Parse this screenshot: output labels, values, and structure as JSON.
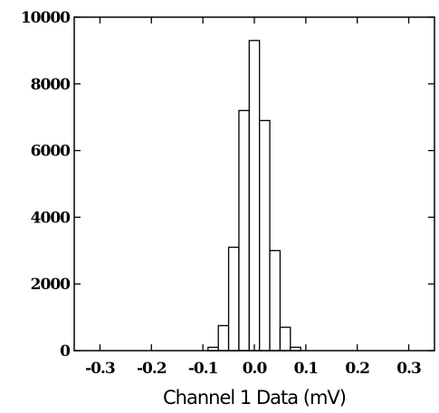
{
  "chart_data": {
    "type": "bar",
    "subtype": "histogram",
    "title": "",
    "xlabel": "Channel 1 Data (mV)",
    "ylabel": "",
    "xlim": [
      -0.35,
      0.35
    ],
    "ylim": [
      0,
      10000
    ],
    "x_ticks": [
      -0.3,
      -0.2,
      -0.1,
      0.0,
      0.1,
      0.2,
      0.3
    ],
    "x_tick_labels": [
      "-0.3",
      "-0.2",
      "-0.1",
      "0.0",
      "0.1",
      "0.2",
      "0.3"
    ],
    "y_ticks": [
      0,
      2000,
      4000,
      6000,
      8000,
      10000
    ],
    "y_tick_labels": [
      "0",
      "2000",
      "4000",
      "6000",
      "8000",
      "10000"
    ],
    "bin_width": 0.02,
    "bin_centers": [
      -0.1,
      -0.08,
      -0.06,
      -0.04,
      -0.02,
      0.0,
      0.02,
      0.04,
      0.06,
      0.08,
      0.1
    ],
    "values": [
      0,
      100,
      750,
      3100,
      7200,
      9300,
      6900,
      3000,
      700,
      100,
      0
    ],
    "bar_fill": "#ffffff",
    "bar_edge": "#000000",
    "grid": false,
    "legend": "none"
  }
}
